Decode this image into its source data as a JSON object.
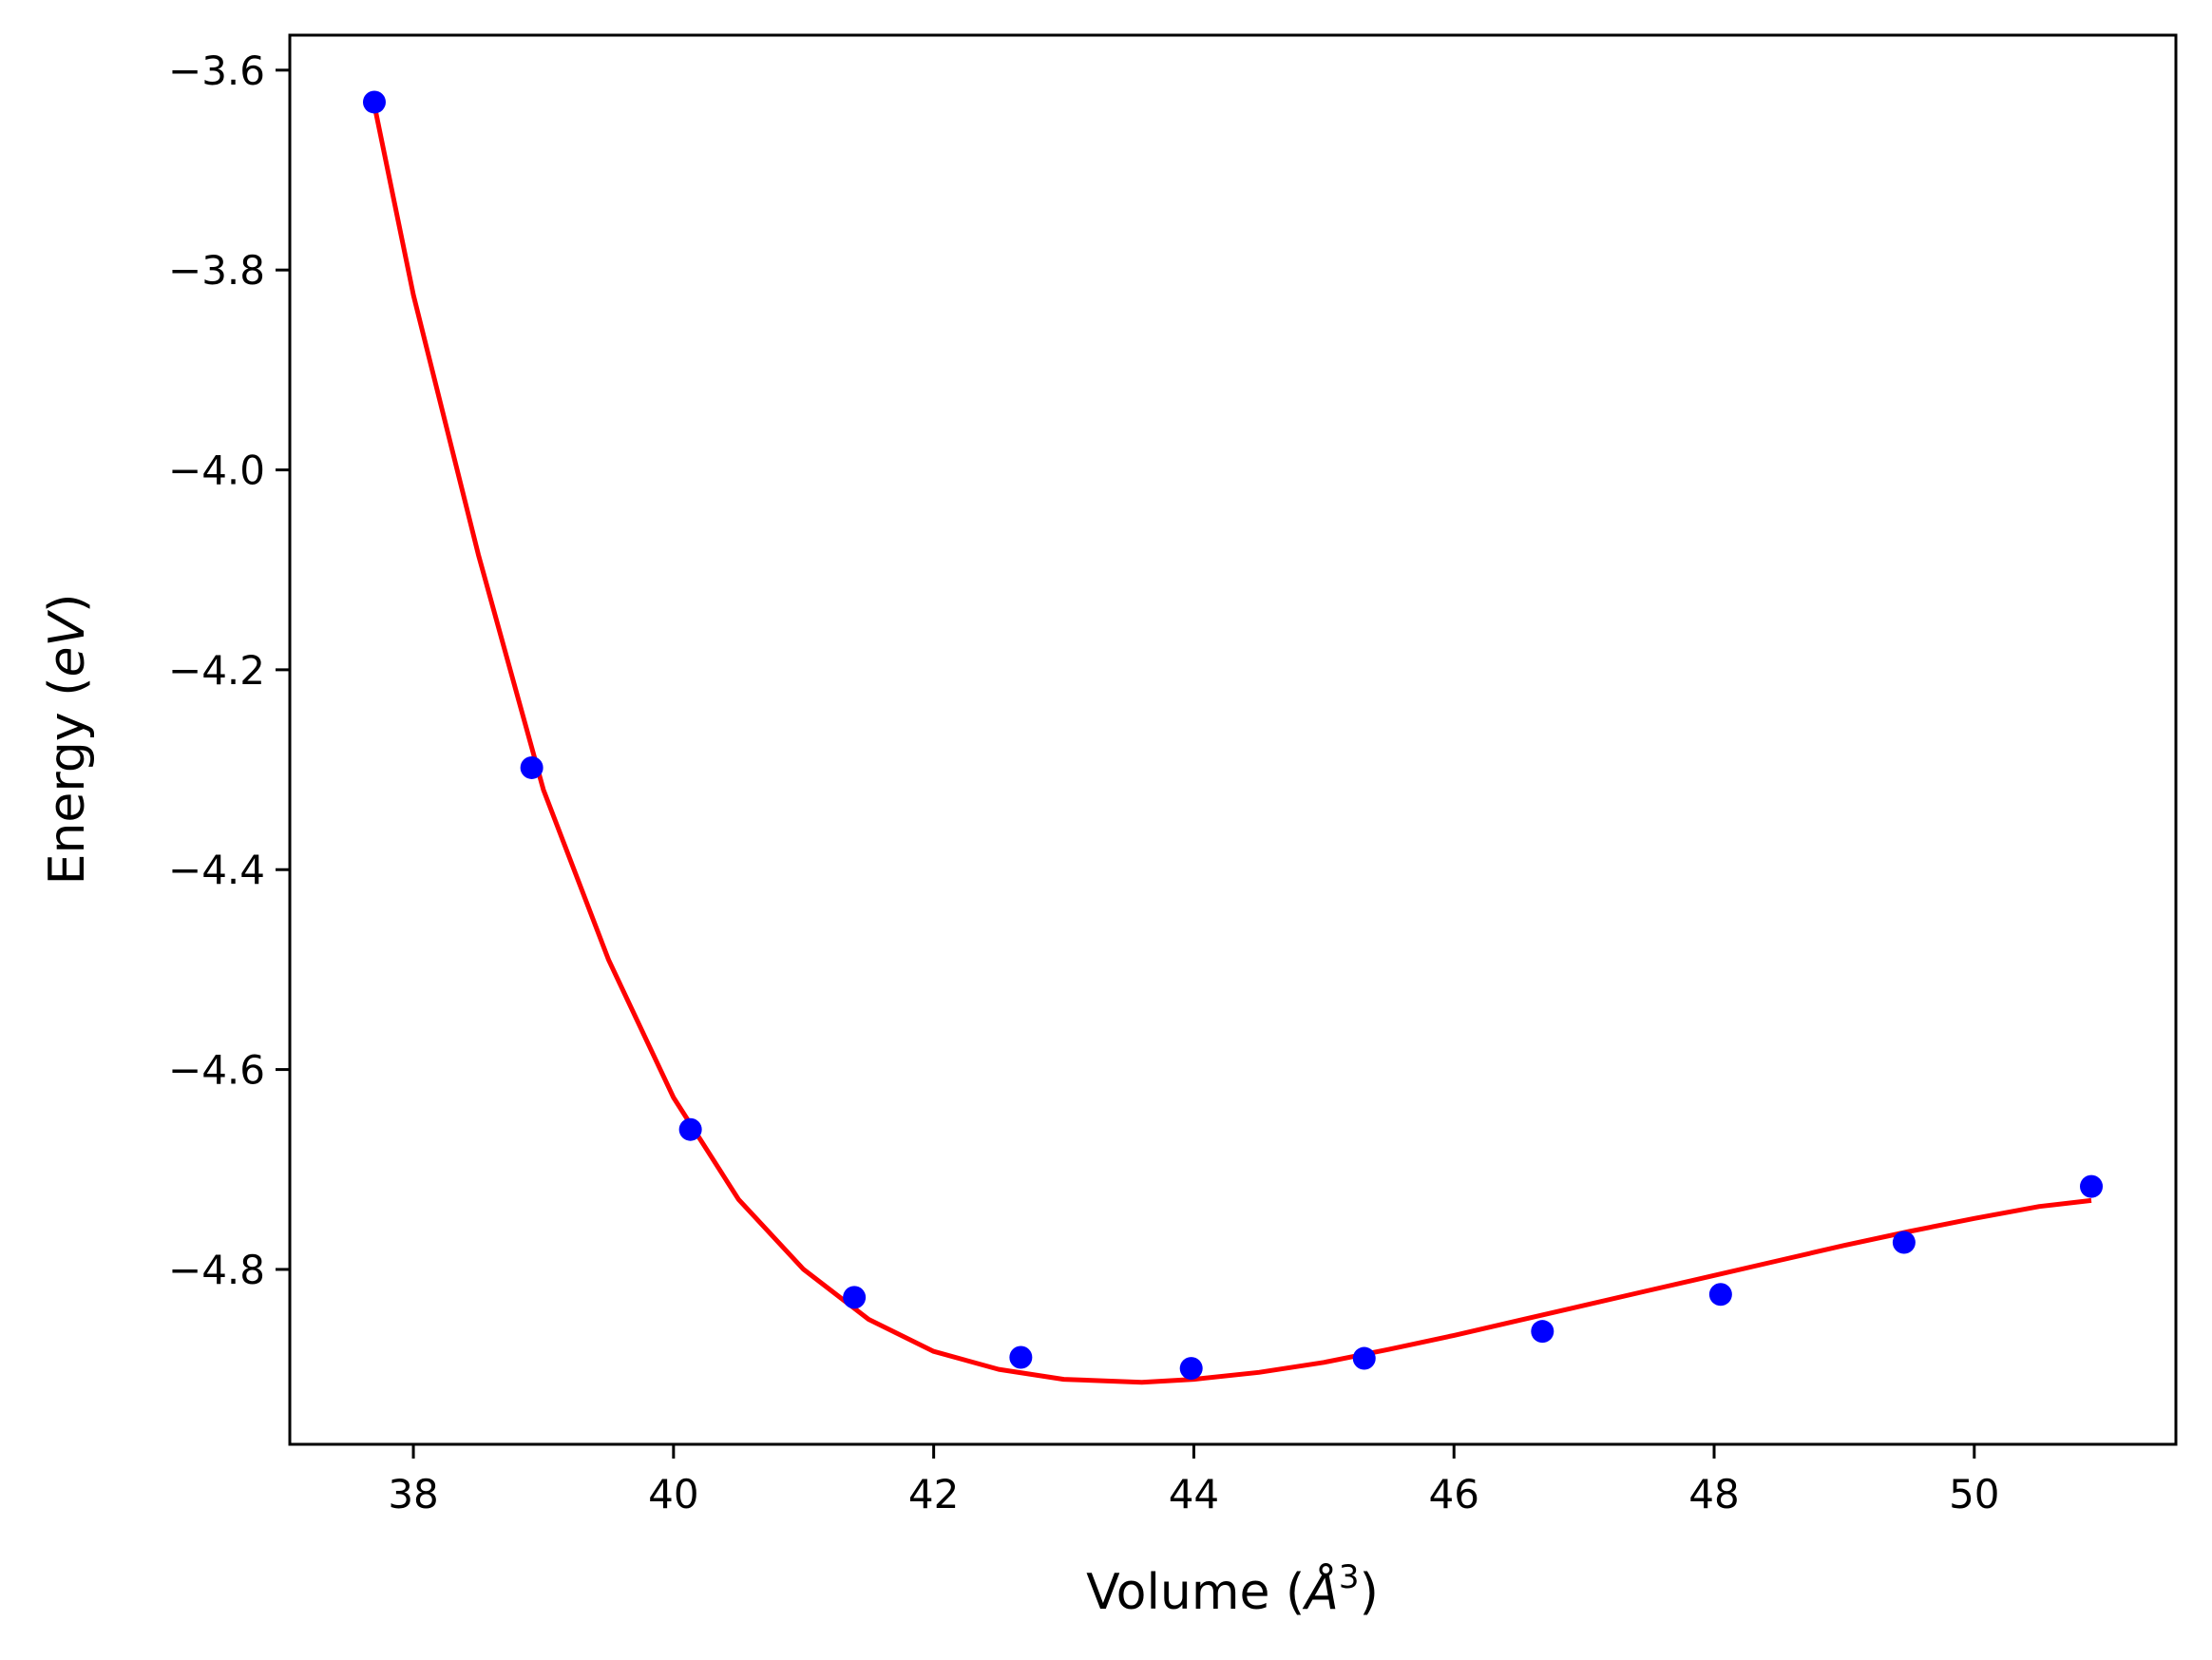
{
  "chart_data": {
    "type": "scatter",
    "xlabel": "Volume (",
    "xlabel_symbol": "Å",
    "xlabel_sup": "3",
    "xlabel_close": ")",
    "ylabel": "Energy (",
    "ylabel_unit": "eV",
    "ylabel_close": ")",
    "xlim": [
      37.05,
      51.55
    ],
    "ylim": [
      -4.975,
      -3.565
    ],
    "x_ticks": [
      38,
      40,
      42,
      44,
      46,
      48,
      50
    ],
    "x_tick_labels": [
      "38",
      "40",
      "42",
      "44",
      "46",
      "48",
      "50"
    ],
    "y_ticks": [
      -3.6,
      -3.8,
      -4.0,
      -4.2,
      -4.4,
      -4.6,
      -4.8
    ],
    "y_tick_labels": [
      "−3.6",
      "−3.8",
      "−4.0",
      "−4.2",
      "−4.4",
      "−4.6",
      "−4.8"
    ],
    "grid": false,
    "series": [
      {
        "kind": "points",
        "color": "#0000ff",
        "x": [
          37.7,
          38.91,
          40.13,
          41.39,
          42.67,
          43.98,
          45.31,
          46.68,
          48.05,
          49.46,
          50.9
        ],
        "y": [
          -3.632,
          -4.298,
          -4.66,
          -4.828,
          -4.888,
          -4.899,
          -4.889,
          -4.862,
          -4.825,
          -4.773,
          -4.717
        ]
      },
      {
        "kind": "fit-line",
        "color": "#ff0000",
        "x": [
          37.7,
          38.0,
          38.5,
          39.0,
          39.5,
          40.0,
          40.5,
          41.0,
          41.5,
          42.0,
          42.5,
          43.0,
          43.6,
          44.0,
          44.5,
          45.0,
          45.5,
          46.0,
          46.5,
          47.0,
          47.5,
          48.0,
          48.5,
          49.0,
          49.5,
          50.0,
          50.5,
          50.9
        ],
        "y": [
          -3.635,
          -3.825,
          -4.085,
          -4.32,
          -4.49,
          -4.628,
          -4.73,
          -4.8,
          -4.85,
          -4.882,
          -4.9,
          -4.91,
          -4.913,
          -4.91,
          -4.903,
          -4.893,
          -4.88,
          -4.866,
          -4.851,
          -4.836,
          -4.821,
          -4.806,
          -4.791,
          -4.776,
          -4.762,
          -4.749,
          -4.737,
          -4.731
        ]
      }
    ]
  }
}
